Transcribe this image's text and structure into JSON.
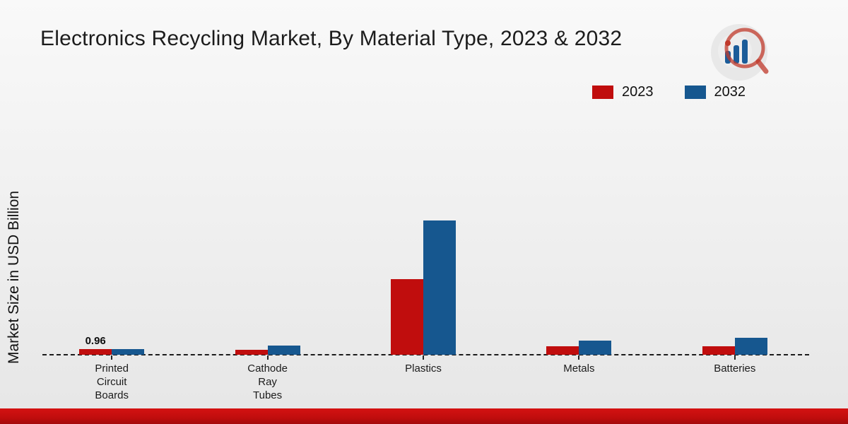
{
  "title": "Electronics Recycling Market, By Material Type, 2023 & 2032",
  "ylabel": "Market Size in USD Billion",
  "legend": [
    {
      "label": "2023",
      "color": "#c00d0d"
    },
    {
      "label": "2032",
      "color": "#16578f"
    }
  ],
  "annotation": "0.96",
  "chart_data": {
    "type": "bar",
    "title": "Electronics Recycling Market, By Material Type, 2023 & 2032",
    "xlabel": "",
    "ylabel": "Market Size in USD Billion",
    "categories": [
      "Printed Circuit Boards",
      "Cathode Ray Tubes",
      "Plastics",
      "Metals",
      "Batteries"
    ],
    "category_lines": [
      [
        "Printed",
        "Circuit",
        "Boards"
      ],
      [
        "Cathode",
        "Ray",
        "Tubes"
      ],
      [
        "Plastics"
      ],
      [
        "Metals"
      ],
      [
        "Batteries"
      ]
    ],
    "series": [
      {
        "name": "2023",
        "color": "#c00d0d",
        "values": [
          0.96,
          0.8,
          12.8,
          1.4,
          1.5
        ]
      },
      {
        "name": "2032",
        "color": "#16578f",
        "values": [
          1.02,
          1.6,
          22.8,
          2.4,
          2.9
        ]
      }
    ],
    "ylim": [
      0,
      25
    ],
    "grid": false,
    "legend_position": "top-right",
    "data_labels": [
      {
        "series": "2023",
        "category_index": 0,
        "text": "0.96"
      }
    ],
    "baseline_style": "dashed"
  },
  "footer": {
    "color": "#c00d0d"
  }
}
